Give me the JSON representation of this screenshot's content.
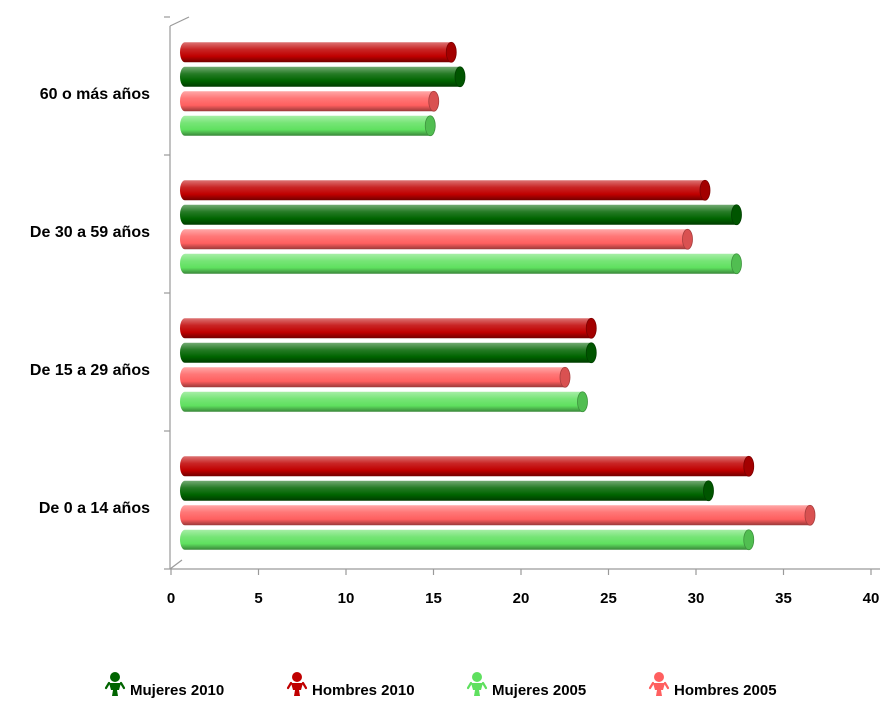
{
  "chart_data": {
    "type": "bar",
    "orientation": "horizontal",
    "style": "3d-cylinder",
    "categories": [
      "60 o más años",
      "De 30 a 59 años",
      "De 15 a 29 años",
      "De 0 a 14 años"
    ],
    "series": [
      {
        "name": "Hombres 2010",
        "color": "#C00000",
        "values": [
          15.5,
          30.0,
          23.5,
          32.5
        ]
      },
      {
        "name": "Mujeres 2010",
        "color": "#006400",
        "values": [
          16.0,
          31.8,
          23.5,
          30.2
        ]
      },
      {
        "name": "Hombres 2005",
        "color": "#FF5F5F",
        "values": [
          14.5,
          29.0,
          22.0,
          36.0
        ]
      },
      {
        "name": "Mujeres 2005",
        "color": "#5FE05F",
        "values": [
          14.3,
          31.8,
          23.0,
          32.5
        ]
      }
    ],
    "xlim": [
      0,
      40
    ],
    "xticks": [
      "0",
      "5",
      "10",
      "15",
      "20",
      "25",
      "30",
      "35",
      "40"
    ],
    "grid": false,
    "legend_position": "bottom",
    "legend_order": [
      "Mujeres 2010",
      "Hombres 2010",
      "Mujeres 2005",
      "Hombres 2005"
    ],
    "legend_icon": "person-icon",
    "xlabel": "",
    "ylabel": "",
    "title": ""
  }
}
